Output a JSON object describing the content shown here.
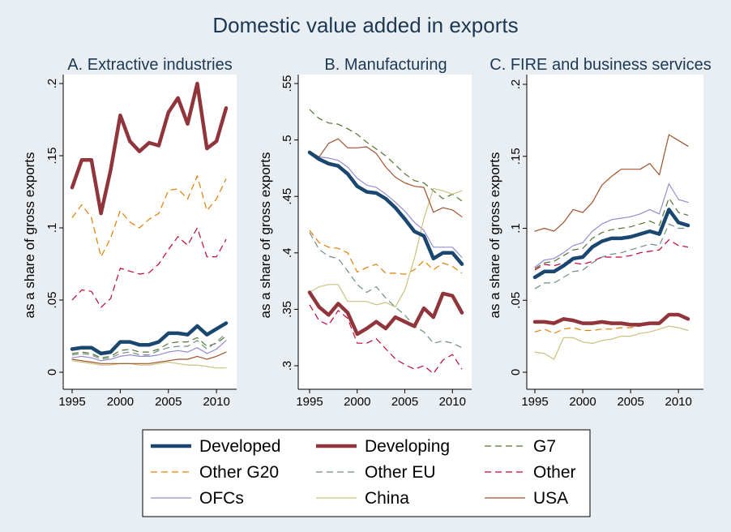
{
  "chart_data": {
    "title": "Domestic value added in exports",
    "type": "line",
    "legend_placement": "bottom",
    "series_styles": [
      {
        "name": "Developed",
        "color": "#1a476f",
        "width": 4.5,
        "dash": ""
      },
      {
        "name": "Developing",
        "color": "#90353b",
        "width": 4.5,
        "dash": ""
      },
      {
        "name": "G7",
        "color": "#55752f",
        "width": 1.2,
        "dash": "8,5"
      },
      {
        "name": "Other G20",
        "color": "#e37e00",
        "width": 1.2,
        "dash": "8,5"
      },
      {
        "name": "Other EU",
        "color": "#6e8e84",
        "width": 1.2,
        "dash": "8,5"
      },
      {
        "name": "Other",
        "color": "#c10534",
        "width": 1.2,
        "dash": "8,5"
      },
      {
        "name": "OFCs",
        "color": "#938dd2",
        "width": 1.2,
        "dash": ""
      },
      {
        "name": "China",
        "color": "#cac27e",
        "width": 1.2,
        "dash": ""
      },
      {
        "name": "USA",
        "color": "#a0522d",
        "width": 1.2,
        "dash": ""
      }
    ],
    "legend": [
      "Developed",
      "Developing",
      "G7",
      "Other G20",
      "Other EU",
      "Other",
      "OFCs",
      "China",
      "USA"
    ],
    "panels": [
      {
        "title": "A. Extractive industries",
        "ylabel": "as a share of gross exports",
        "xlim": [
          1995,
          2011
        ],
        "ylim": [
          0,
          0.2
        ],
        "xticks": [
          1995,
          2000,
          2005,
          2010
        ],
        "yticks": [
          0,
          0.05,
          0.1,
          0.15,
          0.2
        ],
        "ytick_labels": [
          "0",
          ".05",
          ".1",
          ".15",
          ".2"
        ],
        "x": [
          1995,
          1996,
          1997,
          1998,
          1999,
          2000,
          2001,
          2002,
          2003,
          2004,
          2005,
          2006,
          2007,
          2008,
          2009,
          2010,
          2011
        ],
        "series": [
          {
            "name": "Developed",
            "values": [
              0.016,
              0.017,
              0.017,
              0.013,
              0.014,
              0.021,
              0.021,
              0.019,
              0.019,
              0.021,
              0.027,
              0.027,
              0.026,
              0.032,
              0.026,
              0.03,
              0.034
            ]
          },
          {
            "name": "Developing",
            "values": [
              0.128,
              0.147,
              0.147,
              0.11,
              0.14,
              0.178,
              0.16,
              0.153,
              0.159,
              0.157,
              0.18,
              0.19,
              0.172,
              0.2,
              0.155,
              0.16,
              0.183
            ]
          },
          {
            "name": "G7",
            "values": [
              0.013,
              0.014,
              0.013,
              0.01,
              0.011,
              0.015,
              0.016,
              0.014,
              0.014,
              0.016,
              0.02,
              0.021,
              0.021,
              0.024,
              0.018,
              0.02,
              0.025
            ]
          },
          {
            "name": "Other G20",
            "values": [
              0.107,
              0.116,
              0.107,
              0.08,
              0.093,
              0.112,
              0.104,
              0.1,
              0.106,
              0.11,
              0.126,
              0.127,
              0.12,
              0.136,
              0.112,
              0.12,
              0.134
            ]
          },
          {
            "name": "Other EU",
            "values": [
              0.012,
              0.013,
              0.012,
              0.009,
              0.01,
              0.013,
              0.014,
              0.012,
              0.012,
              0.015,
              0.017,
              0.018,
              0.018,
              0.022,
              0.016,
              0.021,
              0.027
            ]
          },
          {
            "name": "Other",
            "values": [
              0.05,
              0.057,
              0.056,
              0.045,
              0.051,
              0.072,
              0.07,
              0.068,
              0.069,
              0.075,
              0.085,
              0.094,
              0.088,
              0.1,
              0.08,
              0.08,
              0.092
            ]
          },
          {
            "name": "OFCs",
            "values": [
              0.01,
              0.011,
              0.01,
              0.008,
              0.009,
              0.011,
              0.012,
              0.011,
              0.011,
              0.012,
              0.014,
              0.015,
              0.014,
              0.017,
              0.013,
              0.016,
              0.022
            ]
          },
          {
            "name": "China",
            "values": [
              0.008,
              0.007,
              0.006,
              0.005,
              0.005,
              0.006,
              0.006,
              0.005,
              0.005,
              0.006,
              0.007,
              0.006,
              0.005,
              0.005,
              0.004,
              0.003,
              0.003
            ]
          },
          {
            "name": "USA",
            "values": [
              0.009,
              0.008,
              0.007,
              0.006,
              0.006,
              0.006,
              0.006,
              0.006,
              0.006,
              0.007,
              0.008,
              0.009,
              0.009,
              0.011,
              0.009,
              0.011,
              0.014
            ]
          }
        ]
      },
      {
        "title": "B. Manufacturing",
        "ylabel": "as a share of gross exports",
        "xlim": [
          1995,
          2011
        ],
        "ylim": [
          0.3,
          0.55
        ],
        "xticks": [
          1995,
          2000,
          2005,
          2010
        ],
        "yticks": [
          0.3,
          0.35,
          0.4,
          0.45,
          0.5,
          0.55
        ],
        "ytick_labels": [
          ".3",
          ".35",
          ".4",
          ".45",
          ".5",
          ".55"
        ],
        "x": [
          1995,
          1996,
          1997,
          1998,
          1999,
          2000,
          2001,
          2002,
          2003,
          2004,
          2005,
          2006,
          2007,
          2008,
          2009,
          2010,
          2011
        ],
        "series": [
          {
            "name": "Developed",
            "values": [
              0.489,
              0.483,
              0.479,
              0.477,
              0.47,
              0.459,
              0.454,
              0.453,
              0.448,
              0.44,
              0.43,
              0.419,
              0.415,
              0.395,
              0.4,
              0.4,
              0.39
            ]
          },
          {
            "name": "Developing",
            "values": [
              0.365,
              0.352,
              0.345,
              0.355,
              0.347,
              0.328,
              0.333,
              0.339,
              0.333,
              0.343,
              0.339,
              0.335,
              0.351,
              0.343,
              0.364,
              0.362,
              0.347
            ]
          },
          {
            "name": "G7",
            "values": [
              0.527,
              0.519,
              0.515,
              0.514,
              0.51,
              0.505,
              0.498,
              0.492,
              0.486,
              0.478,
              0.47,
              0.464,
              0.462,
              0.455,
              0.448,
              0.452,
              0.446
            ]
          },
          {
            "name": "Other G20",
            "values": [
              0.42,
              0.409,
              0.405,
              0.404,
              0.4,
              0.383,
              0.387,
              0.39,
              0.382,
              0.382,
              0.381,
              0.385,
              0.393,
              0.385,
              0.391,
              0.388,
              0.382
            ]
          },
          {
            "name": "Other EU",
            "values": [
              0.418,
              0.403,
              0.397,
              0.395,
              0.384,
              0.372,
              0.365,
              0.37,
              0.36,
              0.352,
              0.345,
              0.335,
              0.33,
              0.32,
              0.322,
              0.32,
              0.316
            ]
          },
          {
            "name": "Other",
            "values": [
              0.354,
              0.34,
              0.336,
              0.349,
              0.342,
              0.32,
              0.32,
              0.324,
              0.315,
              0.306,
              0.301,
              0.297,
              0.3,
              0.293,
              0.305,
              0.31,
              0.297
            ]
          },
          {
            "name": "OFCs",
            "values": [
              0.49,
              0.485,
              0.484,
              0.482,
              0.476,
              0.466,
              0.46,
              0.458,
              0.452,
              0.445,
              0.437,
              0.427,
              0.42,
              0.405,
              0.405,
              0.405,
              0.396
            ]
          },
          {
            "name": "China",
            "values": [
              0.365,
              0.37,
              0.372,
              0.372,
              0.357,
              0.357,
              0.357,
              0.354,
              0.356,
              0.352,
              0.367,
              0.395,
              0.43,
              0.457,
              0.455,
              0.452,
              0.455
            ]
          },
          {
            "name": "USA",
            "values": [
              0.49,
              0.485,
              0.497,
              0.501,
              0.493,
              0.493,
              0.494,
              0.488,
              0.476,
              0.467,
              0.462,
              0.459,
              0.458,
              0.436,
              0.44,
              0.438,
              0.432
            ]
          }
        ]
      },
      {
        "title": "C. FIRE and business services",
        "ylabel": "as a share of gross exports",
        "xlim": [
          1995,
          2011
        ],
        "ylim": [
          0,
          0.2
        ],
        "xticks": [
          1995,
          2000,
          2005,
          2010
        ],
        "yticks": [
          0,
          0.05,
          0.1,
          0.15,
          0.2
        ],
        "ytick_labels": [
          "0",
          ".05",
          ".1",
          ".15",
          ".2"
        ],
        "x": [
          1995,
          1996,
          1997,
          1998,
          1999,
          2000,
          2001,
          2002,
          2003,
          2004,
          2005,
          2006,
          2007,
          2008,
          2009,
          2010,
          2011
        ],
        "series": [
          {
            "name": "Developed",
            "values": [
              0.066,
              0.07,
              0.07,
              0.074,
              0.079,
              0.08,
              0.087,
              0.091,
              0.093,
              0.093,
              0.094,
              0.096,
              0.098,
              0.096,
              0.113,
              0.104,
              0.102
            ]
          },
          {
            "name": "Developing",
            "values": [
              0.035,
              0.035,
              0.034,
              0.037,
              0.036,
              0.034,
              0.034,
              0.035,
              0.034,
              0.034,
              0.033,
              0.033,
              0.034,
              0.034,
              0.04,
              0.04,
              0.037
            ]
          },
          {
            "name": "G7",
            "values": [
              0.072,
              0.076,
              0.077,
              0.081,
              0.085,
              0.086,
              0.093,
              0.097,
              0.099,
              0.1,
              0.101,
              0.103,
              0.105,
              0.102,
              0.121,
              0.111,
              0.109
            ]
          },
          {
            "name": "Other G20",
            "values": [
              0.028,
              0.03,
              0.027,
              0.03,
              0.031,
              0.029,
              0.029,
              0.03,
              0.03,
              0.031,
              0.031,
              0.032,
              0.034,
              0.035,
              0.04,
              0.039,
              0.038
            ]
          },
          {
            "name": "Other EU",
            "values": [
              0.058,
              0.062,
              0.062,
              0.066,
              0.07,
              0.071,
              0.076,
              0.08,
              0.082,
              0.083,
              0.085,
              0.087,
              0.089,
              0.088,
              0.103,
              0.1,
              0.1
            ]
          },
          {
            "name": "Other",
            "values": [
              0.071,
              0.075,
              0.074,
              0.076,
              0.076,
              0.075,
              0.077,
              0.08,
              0.08,
              0.08,
              0.081,
              0.083,
              0.084,
              0.085,
              0.092,
              0.088,
              0.087
            ]
          },
          {
            "name": "OFCs",
            "values": [
              0.073,
              0.078,
              0.079,
              0.083,
              0.088,
              0.09,
              0.098,
              0.103,
              0.106,
              0.107,
              0.108,
              0.11,
              0.113,
              0.11,
              0.131,
              0.12,
              0.118
            ]
          },
          {
            "name": "China",
            "values": [
              0.014,
              0.013,
              0.009,
              0.024,
              0.024,
              0.021,
              0.02,
              0.022,
              0.023,
              0.025,
              0.025,
              0.027,
              0.028,
              0.03,
              0.032,
              0.031,
              0.029
            ]
          },
          {
            "name": "USA",
            "values": [
              0.098,
              0.1,
              0.098,
              0.104,
              0.113,
              0.111,
              0.118,
              0.13,
              0.136,
              0.141,
              0.141,
              0.141,
              0.145,
              0.137,
              0.165,
              0.161,
              0.157
            ]
          }
        ]
      }
    ]
  }
}
